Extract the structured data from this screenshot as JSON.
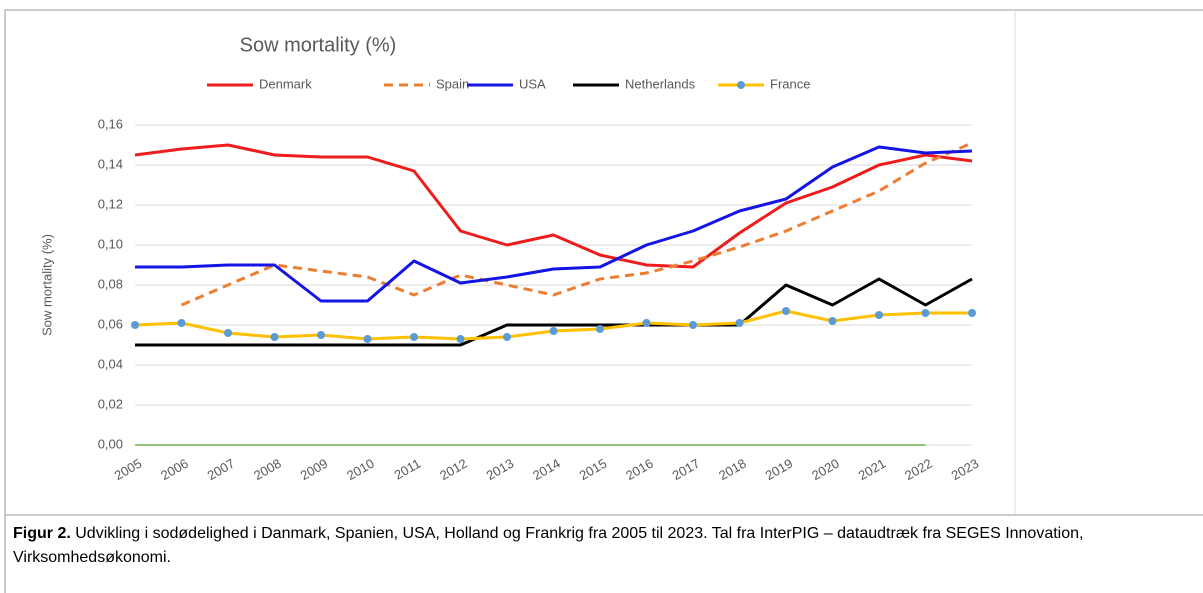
{
  "chart_data": {
    "type": "line",
    "title": "Sow mortality (%)",
    "y_label": "Sow mortality (%)",
    "categories": [
      "2005",
      "2006",
      "2007",
      "2008",
      "2009",
      "2010",
      "2011",
      "2012",
      "2013",
      "2014",
      "2015",
      "2016",
      "2017",
      "2018",
      "2019",
      "2020",
      "2021",
      "2022",
      "2023"
    ],
    "ylim": [
      0,
      0.16
    ],
    "yticks": [
      {
        "value": 0,
        "label": "0,00"
      },
      {
        "value": 0.02,
        "label": "0,02"
      },
      {
        "value": 0.04,
        "label": "0,04"
      },
      {
        "value": 0.06,
        "label": "0,06"
      },
      {
        "value": 0.08,
        "label": "0,08"
      },
      {
        "value": 0.1,
        "label": "0,10"
      },
      {
        "value": 0.12,
        "label": "0,12"
      },
      {
        "value": 0.14,
        "label": "0,14"
      },
      {
        "value": 0.16,
        "label": "0,16"
      }
    ],
    "grid": true,
    "legend": "top",
    "series": [
      {
        "name": "Denmark",
        "color": "#ee1c1c",
        "values": [
          0.145,
          0.148,
          0.15,
          0.145,
          0.144,
          0.144,
          0.137,
          0.107,
          0.1,
          0.105,
          0.095,
          0.09,
          0.089,
          0.106,
          0.121,
          0.129,
          0.14,
          0.145,
          0.142
        ]
      },
      {
        "name": "Spain",
        "color": "#ed7d31",
        "dashed": true,
        "values": [
          null,
          0.07,
          0.08,
          0.09,
          0.087,
          0.084,
          0.075,
          0.085,
          0.08,
          0.075,
          0.083,
          0.086,
          0.092,
          0.099,
          0.107,
          0.117,
          0.127,
          0.141,
          0.151
        ]
      },
      {
        "name": "USA",
        "color": "#1414e6",
        "values": [
          0.089,
          0.089,
          0.09,
          0.09,
          0.072,
          0.072,
          0.092,
          0.081,
          0.084,
          0.088,
          0.089,
          0.1,
          0.107,
          0.117,
          0.123,
          0.139,
          0.149,
          0.146,
          0.147
        ]
      },
      {
        "name": "Netherlands",
        "color": "#000000",
        "values": [
          0.05,
          0.05,
          0.05,
          0.05,
          0.05,
          0.05,
          0.05,
          0.05,
          0.06,
          0.06,
          0.06,
          0.06,
          0.06,
          0.06,
          0.08,
          0.07,
          0.083,
          0.07,
          0.083
        ]
      },
      {
        "name": "France",
        "color": "#ffc000",
        "marker": "circle",
        "marker_color": "#5b9bd5",
        "values": [
          0.06,
          0.061,
          0.056,
          0.054,
          0.055,
          0.053,
          0.054,
          0.053,
          0.054,
          0.057,
          0.058,
          0.061,
          0.06,
          0.061,
          0.067,
          0.062,
          0.065,
          0.066,
          0.066
        ]
      }
    ]
  },
  "caption": {
    "label": "Figur 2.",
    "text": "Udvikling i sodødelighed i Danmark, Spanien, USA, Holland og Frankrig fra 2005 til 2023. Tal fra InterPIG – dataudtræk fra SEGES Innovation, Virksomhedsøkonomi."
  }
}
